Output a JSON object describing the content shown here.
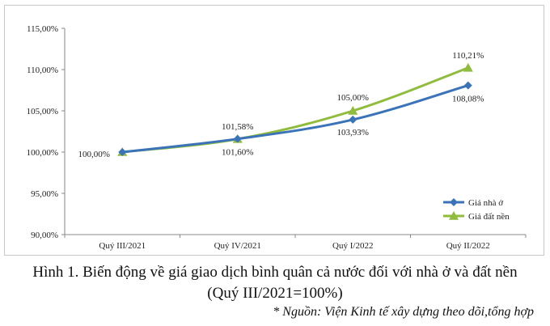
{
  "chart_data": {
    "type": "line",
    "categories": [
      "Quý III/2021",
      "Quý IV/2021",
      "Quý I/2022",
      "Quý II/2022"
    ],
    "ylim": [
      90,
      115
    ],
    "yticks": [
      "90,00%",
      "95,00%",
      "100,00%",
      "105,00%",
      "110,00%",
      "115,00%"
    ],
    "grid": false,
    "legend": "right",
    "series": [
      {
        "name": "Giá nhà ở",
        "color": "#3b73b9",
        "marker": "diamond",
        "values": [
          100.0,
          101.6,
          103.93,
          108.08
        ],
        "labels": [
          "100,00%",
          "101,60%",
          "103,93%",
          "108,08%"
        ]
      },
      {
        "name": "Giá đất nền",
        "color": "#8fbc3c",
        "marker": "triangle",
        "values": [
          100.0,
          101.58,
          105.0,
          110.21
        ],
        "labels": [
          "",
          "101,58%",
          "105,00%",
          "110,21%"
        ]
      }
    ]
  },
  "caption": {
    "line1": "Hình 1. Biến động về giá giao dịch bình quân cả nước đối với nhà ở và đất nền",
    "line2": "(Quý III/2021=100%)"
  },
  "source": "* Nguồn: Viện Kinh tế xây dựng theo dõi,tổng hợp"
}
